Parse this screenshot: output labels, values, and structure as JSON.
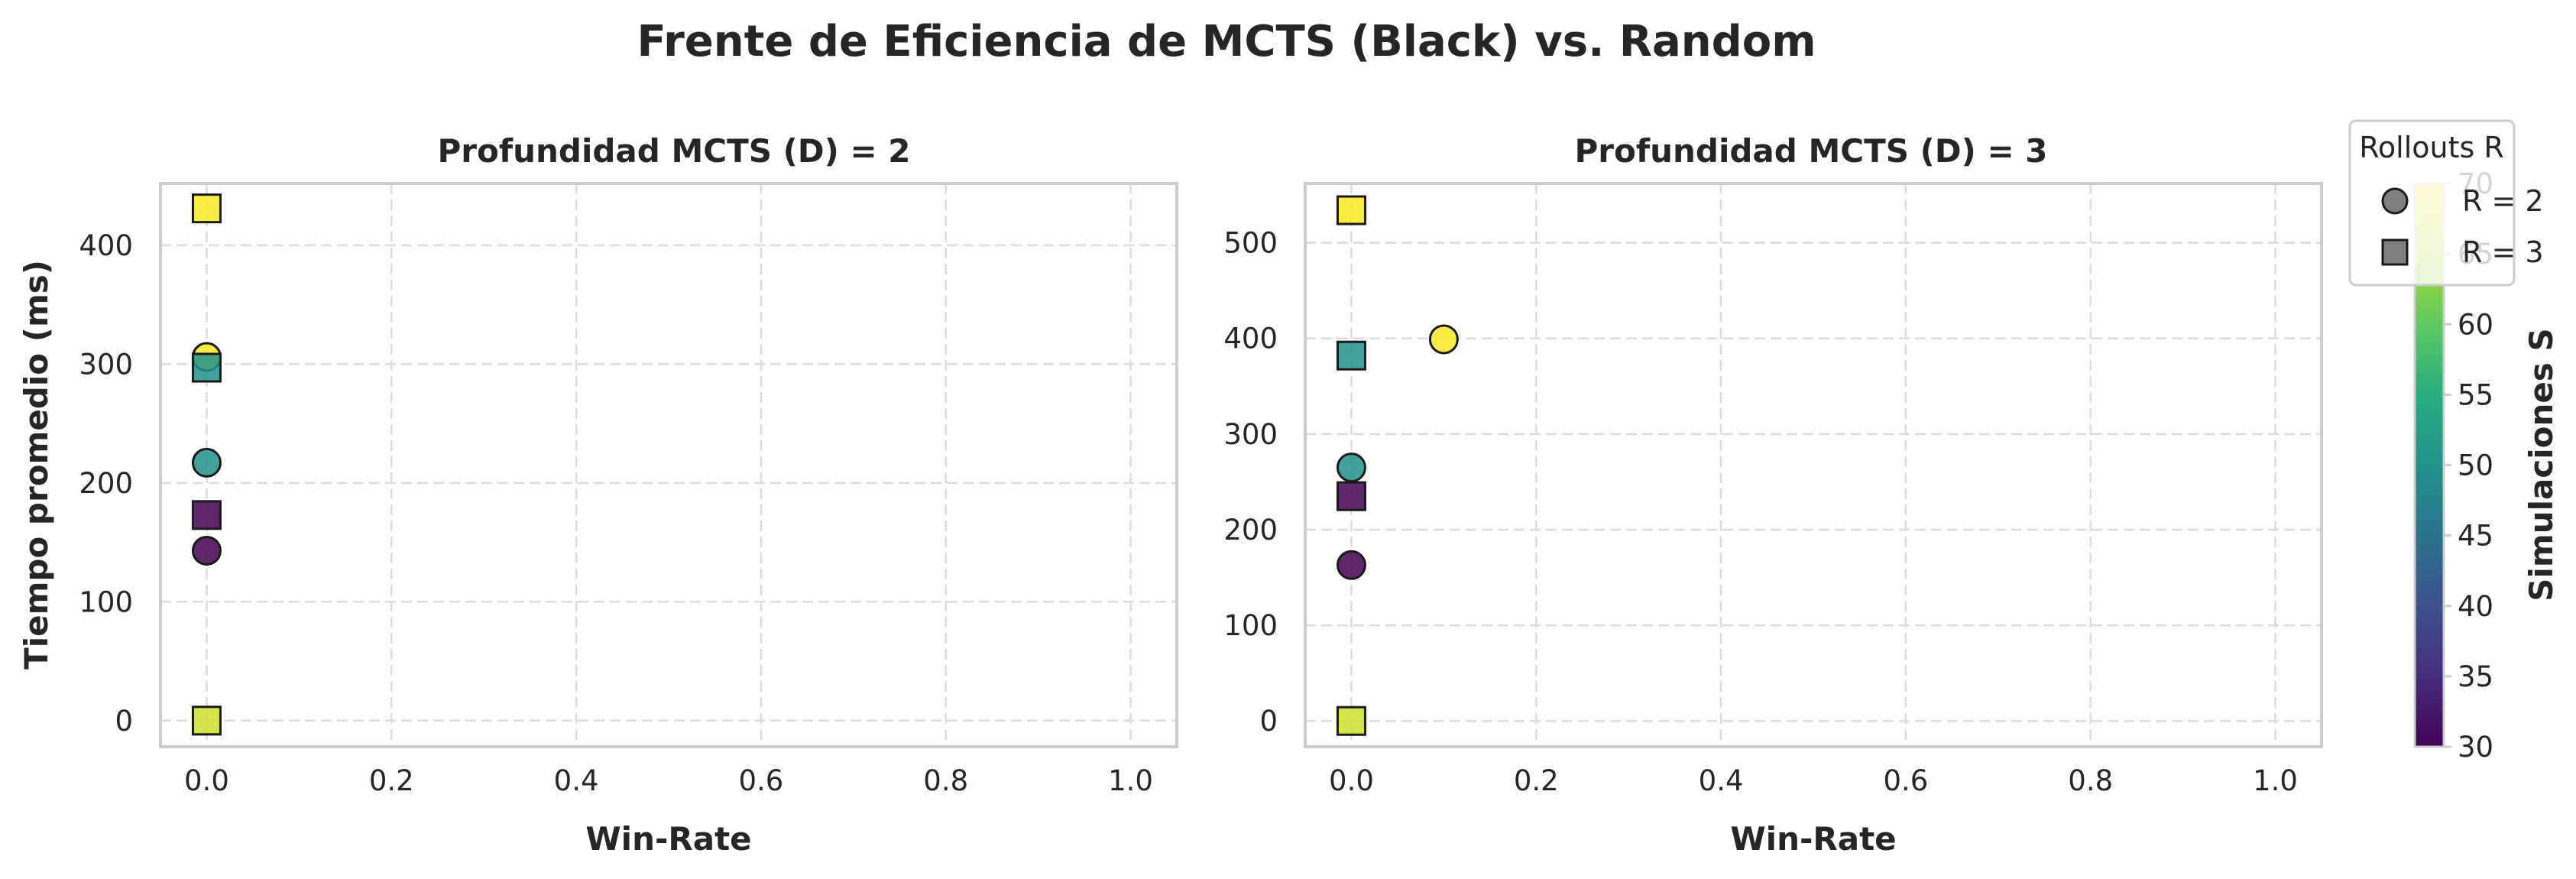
{
  "chart_data": {
    "type": "scatter",
    "title": "Frente de Eficiencia de MCTS (Black) vs. Random",
    "panels": [
      {
        "title": "Profundidad MCTS (D) = 2",
        "xlabel": "Win-Rate",
        "ylabel": "Tiempo promedio (ms)",
        "xlim": [
          -0.05,
          1.05
        ],
        "ylim": [
          -22,
          452
        ],
        "xticks": [
          0.0,
          0.2,
          0.4,
          0.6,
          0.8,
          1.0
        ],
        "xtick_labels": [
          "0.0",
          "0.2",
          "0.4",
          "0.6",
          "0.8",
          "1.0"
        ],
        "yticks": [
          0,
          100,
          200,
          300,
          400
        ],
        "ytick_labels": [
          "0",
          "100",
          "200",
          "300",
          "400"
        ],
        "grid": true,
        "points": [
          {
            "x": 0.0,
            "y": 143,
            "rollouts": 2,
            "simulations": 30
          },
          {
            "x": 0.0,
            "y": 217,
            "rollouts": 2,
            "simulations": 50
          },
          {
            "x": 0.0,
            "y": 306,
            "rollouts": 2,
            "simulations": 70
          },
          {
            "x": 0.0,
            "y": 173,
            "rollouts": 3,
            "simulations": 30
          },
          {
            "x": 0.0,
            "y": 297,
            "rollouts": 3,
            "simulations": 50
          },
          {
            "x": 0.0,
            "y": 431,
            "rollouts": 3,
            "simulations": 70
          },
          {
            "x": 0.0,
            "y": 0,
            "rollouts": 3,
            "simulations": 67
          }
        ]
      },
      {
        "title": "Profundidad MCTS (D) = 3",
        "xlabel": "Win-Rate",
        "ylabel": "",
        "xlim": [
          -0.05,
          1.05
        ],
        "ylim": [
          -27,
          562
        ],
        "xticks": [
          0.0,
          0.2,
          0.4,
          0.6,
          0.8,
          1.0
        ],
        "xtick_labels": [
          "0.0",
          "0.2",
          "0.4",
          "0.6",
          "0.8",
          "1.0"
        ],
        "yticks": [
          0,
          100,
          200,
          300,
          400,
          500
        ],
        "ytick_labels": [
          "0",
          "100",
          "200",
          "300",
          "400",
          "500"
        ],
        "grid": true,
        "points": [
          {
            "x": 0.0,
            "y": 163,
            "rollouts": 2,
            "simulations": 30
          },
          {
            "x": 0.0,
            "y": 265,
            "rollouts": 2,
            "simulations": 50
          },
          {
            "x": 0.1,
            "y": 399,
            "rollouts": 2,
            "simulations": 70
          },
          {
            "x": 0.0,
            "y": 235,
            "rollouts": 3,
            "simulations": 30
          },
          {
            "x": 0.0,
            "y": 382,
            "rollouts": 3,
            "simulations": 50
          },
          {
            "x": 0.0,
            "y": 534,
            "rollouts": 3,
            "simulations": 70
          },
          {
            "x": 0.0,
            "y": 0,
            "rollouts": 3,
            "simulations": 67
          }
        ]
      }
    ],
    "legend": {
      "title": "Rollouts R",
      "placement": "top-right",
      "entries": [
        {
          "label": "R = 2",
          "marker": "circle"
        },
        {
          "label": "R = 3",
          "marker": "square"
        }
      ]
    },
    "colorbar": {
      "label": "Simulaciones S",
      "colormap": "viridis",
      "range": [
        30,
        70
      ],
      "ticks": [
        30,
        35,
        40,
        45,
        50,
        55,
        60,
        65,
        70
      ],
      "tick_labels": [
        "30",
        "35",
        "40",
        "45",
        "50",
        "55",
        "60",
        "65",
        "70"
      ]
    },
    "marker_edge_color": "#1a1a1a",
    "marker_alpha": 0.85,
    "grid_color": "#dcdcdc",
    "frame_color": "#cccccc"
  }
}
